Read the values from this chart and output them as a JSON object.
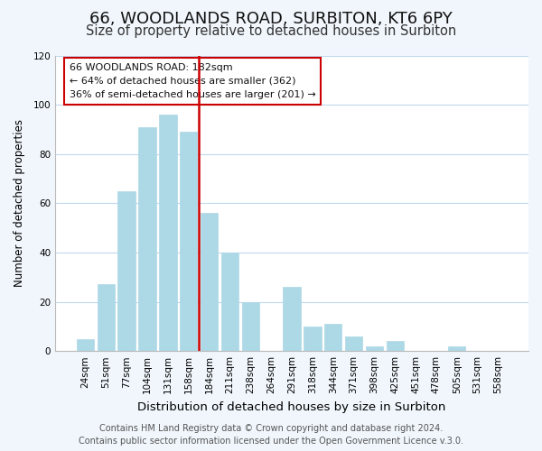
{
  "title": "66, WOODLANDS ROAD, SURBITON, KT6 6PY",
  "subtitle": "Size of property relative to detached houses in Surbiton",
  "xlabel": "Distribution of detached houses by size in Surbiton",
  "ylabel": "Number of detached properties",
  "categories": [
    "24sqm",
    "51sqm",
    "77sqm",
    "104sqm",
    "131sqm",
    "158sqm",
    "184sqm",
    "211sqm",
    "238sqm",
    "264sqm",
    "291sqm",
    "318sqm",
    "344sqm",
    "371sqm",
    "398sqm",
    "425sqm",
    "451sqm",
    "478sqm",
    "505sqm",
    "531sqm",
    "558sqm"
  ],
  "values": [
    5,
    27,
    65,
    91,
    96,
    89,
    56,
    40,
    20,
    0,
    26,
    10,
    11,
    6,
    2,
    4,
    0,
    0,
    2,
    0,
    0
  ],
  "bar_color": "#add8e6",
  "vline_color": "#cc0000",
  "vline_x": 5.5,
  "ylim": [
    0,
    120
  ],
  "yticks": [
    0,
    20,
    40,
    60,
    80,
    100,
    120
  ],
  "annotation_title": "66 WOODLANDS ROAD: 182sqm",
  "annotation_line1": "← 64% of detached houses are smaller (362)",
  "annotation_line2": "36% of semi-detached houses are larger (201) →",
  "footer1": "Contains HM Land Registry data © Crown copyright and database right 2024.",
  "footer2": "Contains public sector information licensed under the Open Government Licence v.3.0.",
  "background_color": "#f0f6fc",
  "plot_bg_color": "#ffffff",
  "grid_color": "#c0d8ee",
  "title_fontsize": 13,
  "subtitle_fontsize": 10.5,
  "xlabel_fontsize": 9.5,
  "ylabel_fontsize": 8.5,
  "tick_fontsize": 7.5,
  "footer_fontsize": 7.0
}
